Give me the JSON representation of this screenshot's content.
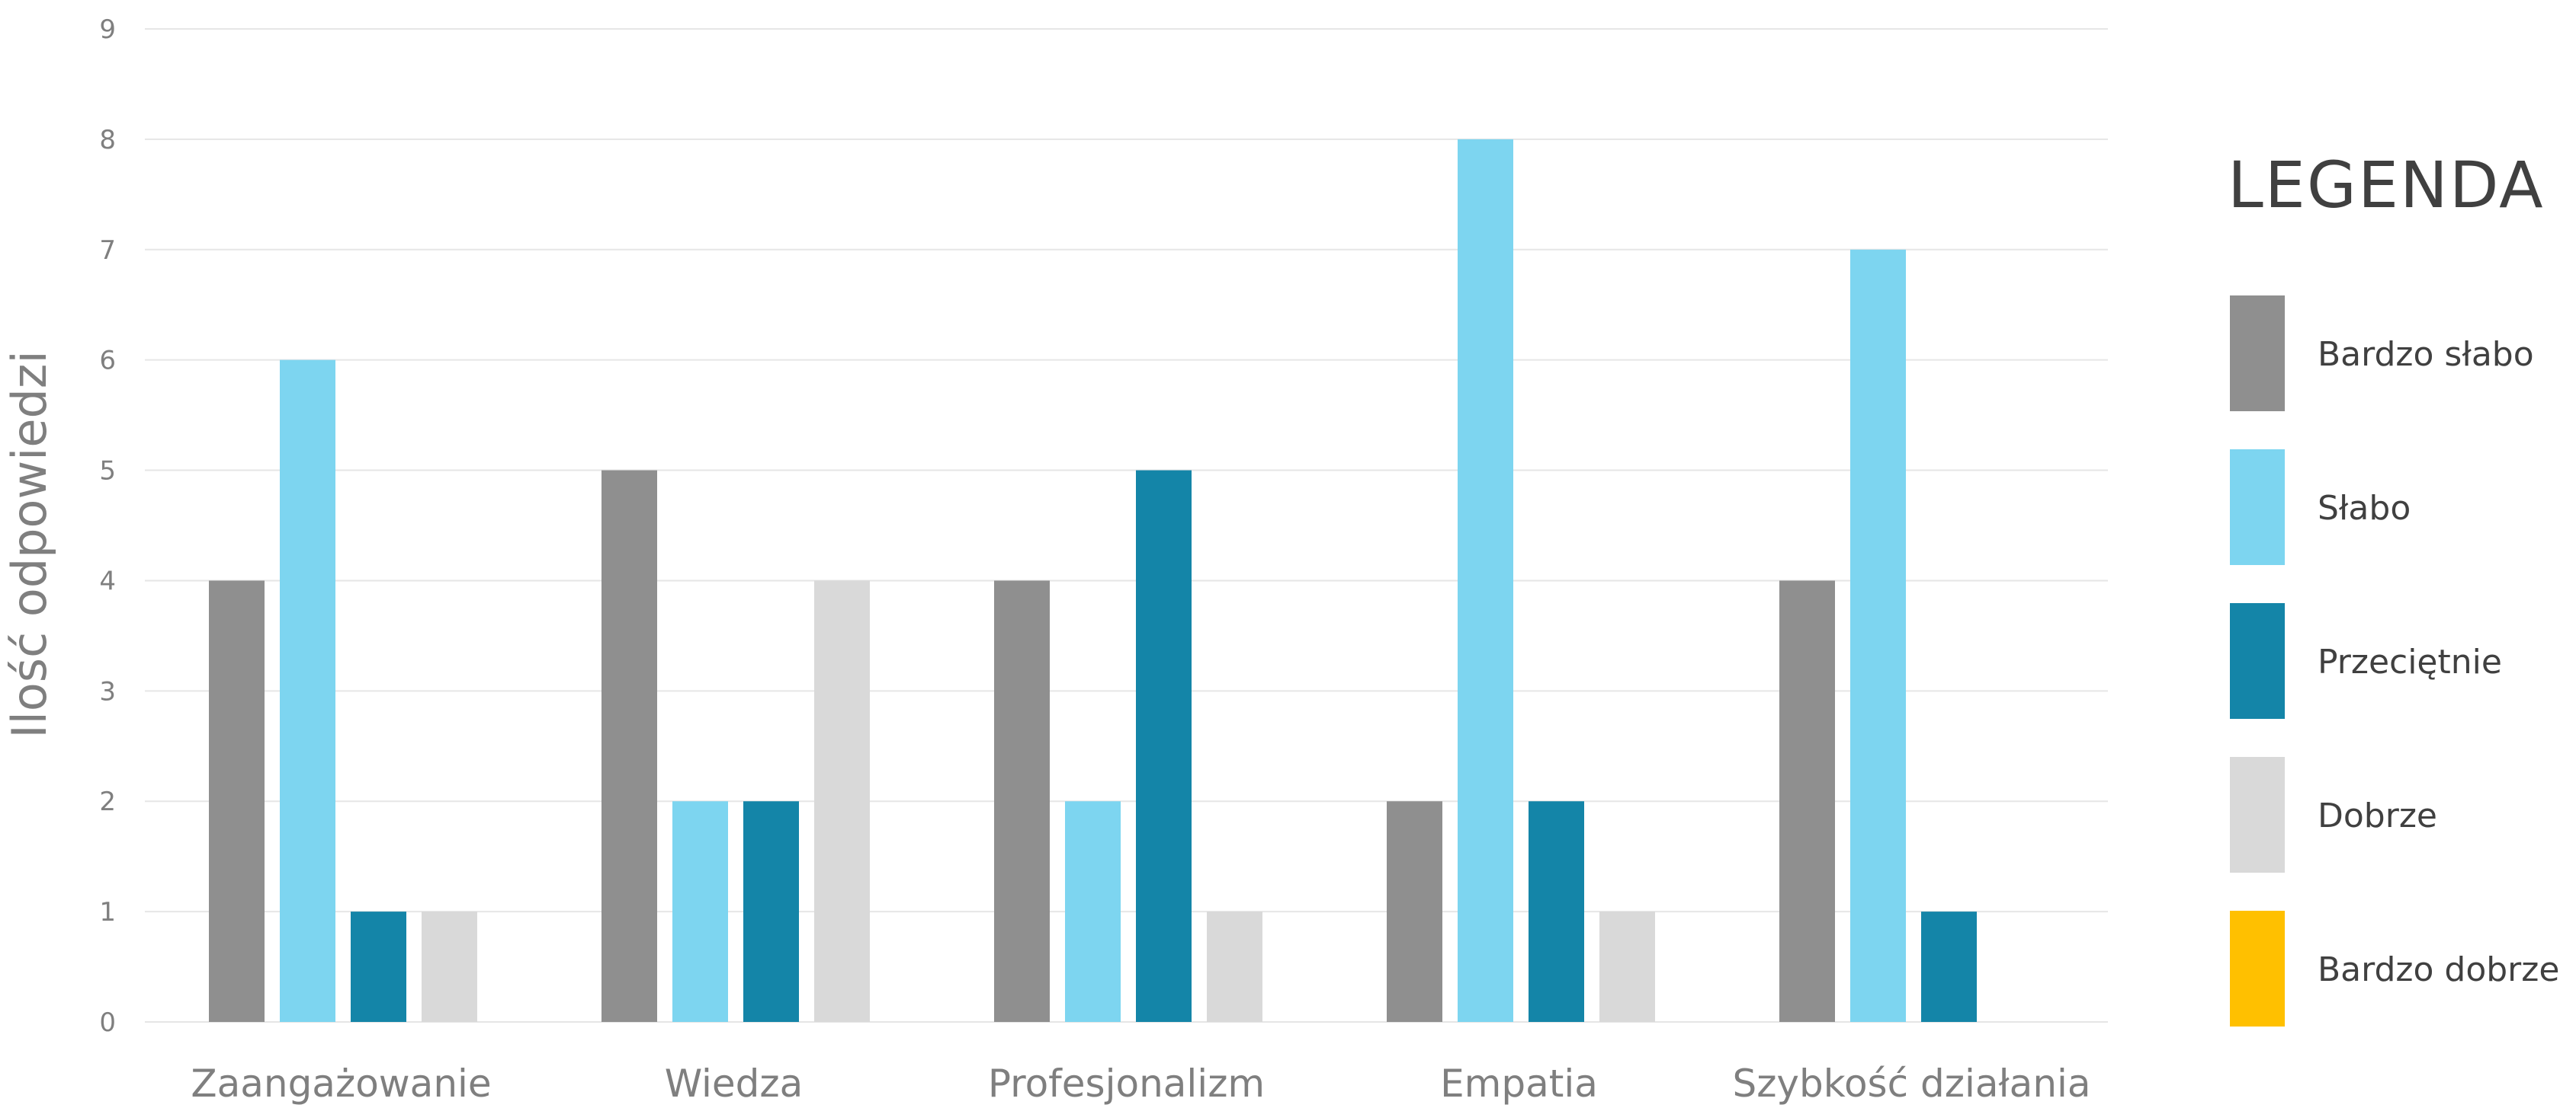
{
  "chart_data": {
    "type": "bar",
    "title": "",
    "xlabel": "",
    "ylabel": "Ilość odpowiedzi",
    "ylim": [
      0,
      9
    ],
    "yticks": [
      0,
      1,
      2,
      3,
      4,
      5,
      6,
      7,
      8,
      9
    ],
    "grid": true,
    "legend": {
      "title": "LEGENDA",
      "placement": "right"
    },
    "categories": [
      "Zaangażowanie",
      "Wiedza",
      "Profesjonalizm",
      "Empatia",
      "Szybkość działania"
    ],
    "series": [
      {
        "name": "Bardzo słabo",
        "color": "#8f8f8f",
        "values": [
          4,
          5,
          4,
          2,
          4
        ]
      },
      {
        "name": "Słabo",
        "color": "#7dd5f0",
        "values": [
          6,
          2,
          2,
          8,
          7
        ]
      },
      {
        "name": "Przeciętnie",
        "color": "#1485a8",
        "values": [
          1,
          2,
          5,
          2,
          1
        ]
      },
      {
        "name": "Dobrze",
        "color": "#d9d9d9",
        "values": [
          1,
          4,
          1,
          1,
          0
        ]
      },
      {
        "name": "Bardzo dobrze",
        "color": "#ffc000",
        "values": [
          0,
          0,
          0,
          0,
          0
        ]
      }
    ],
    "gridline_color": "#e6e6e6"
  }
}
